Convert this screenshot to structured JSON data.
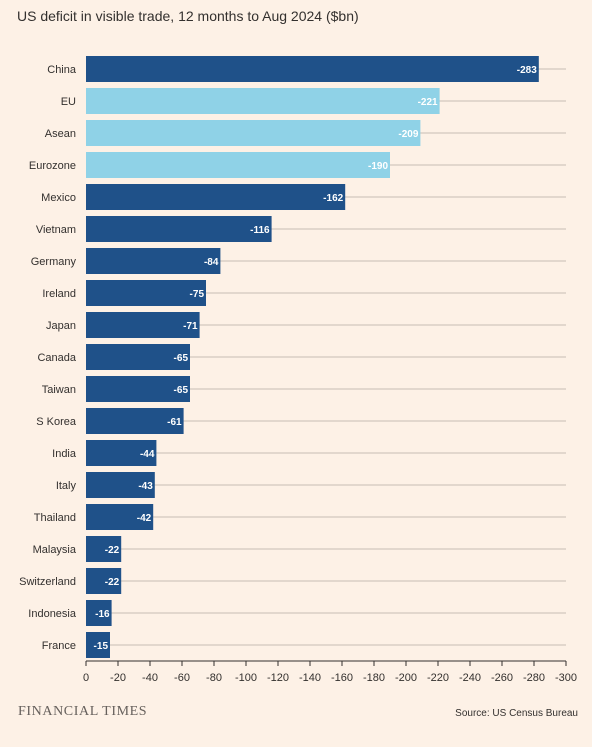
{
  "chart_data": {
    "type": "bar",
    "orientation": "horizontal",
    "title": "US deficit in visible trade, 12 months to Aug 2024 ($bn)",
    "categories": [
      "China",
      "EU",
      "Asean",
      "Eurozone",
      "Mexico",
      "Vietnam",
      "Germany",
      "Ireland",
      "Japan",
      "Canada",
      "Taiwan",
      "S Korea",
      "India",
      "Italy",
      "Thailand",
      "Malaysia",
      "Switzerland",
      "Indonesia",
      "France"
    ],
    "values": [
      -283,
      -221,
      -209,
      -190,
      -162,
      -116,
      -84,
      -75,
      -71,
      -65,
      -65,
      -61,
      -44,
      -43,
      -42,
      -22,
      -22,
      -16,
      -15
    ],
    "value_labels": [
      "-283",
      "-221",
      "-209",
      "-190",
      "-162",
      "-116",
      "-84",
      "-75",
      "-71",
      "-65",
      "-65",
      "-61",
      "-44",
      "-43",
      "-42",
      "-22",
      "-22",
      "-16",
      "-15"
    ],
    "highlight": [
      false,
      true,
      true,
      true,
      false,
      false,
      false,
      false,
      false,
      false,
      false,
      false,
      false,
      false,
      false,
      false,
      false,
      false,
      false
    ],
    "colors": {
      "primary": "#1f5189",
      "highlight": "#8fd2e7",
      "grid": "#b5aba3",
      "axis": "#33302e"
    },
    "xlim": [
      0,
      -300
    ],
    "x_ticks": [
      0,
      -20,
      -40,
      -60,
      -80,
      -100,
      -120,
      -140,
      -160,
      -180,
      -200,
      -220,
      -240,
      -260,
      -280,
      -300
    ],
    "x_tick_labels": [
      "0",
      "-20",
      "-40",
      "-60",
      "-80",
      "-100",
      "-120",
      "-140",
      "-160",
      "-180",
      "-200",
      "-220",
      "-240",
      "-260",
      "-280",
      "-300"
    ],
    "grid": true
  },
  "brand": "FINANCIAL TIMES",
  "source": "Source: US Census Bureau"
}
